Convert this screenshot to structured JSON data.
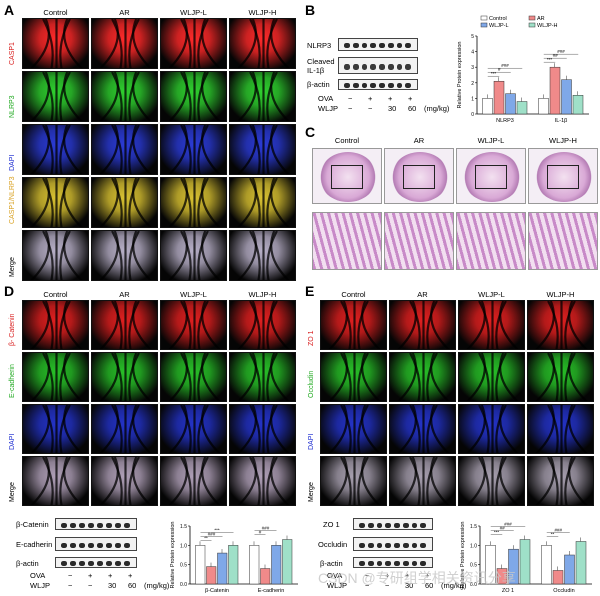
{
  "panels": {
    "A": {
      "label": "A",
      "columns": [
        "Control",
        "AR",
        "WLJP-L",
        "WLJP-H"
      ],
      "rows": [
        {
          "name": "CASP1",
          "color": "#ff2a2a",
          "label_color": "#d81b1b"
        },
        {
          "name": "NLRP3",
          "color": "#2fd02f",
          "label_color": "#1ea81e"
        },
        {
          "name": "DAPI",
          "color": "#2b3bd6",
          "label_color": "#1b2bd0"
        },
        {
          "name": "CASP1/NLRP3",
          "color": "#d9c232",
          "label_color": "#d8a020"
        },
        {
          "name": "Merge",
          "color": "#b8b0c8",
          "label_color": "#000000"
        }
      ]
    },
    "B": {
      "label": "B",
      "blot_labels": [
        "NLRP3",
        "Cleaved IL-1β",
        "β-actin"
      ],
      "treatment_rows": [
        {
          "name": "OVA",
          "values": [
            "−",
            "+",
            "+",
            "+"
          ]
        },
        {
          "name": "WLJP",
          "values": [
            "−",
            "−",
            "30",
            "60"
          ],
          "unit": "(mg/kg)"
        }
      ],
      "chart_data": {
        "type": "bar",
        "ylabel": "Relative Protein expression",
        "ylim": [
          0,
          5
        ],
        "yticks": [
          "0",
          "1",
          "2",
          "3",
          "4",
          "5"
        ],
        "categories": [
          "NLRP3",
          "IL-1β"
        ],
        "legend": [
          "Control",
          "AR",
          "WLJP-L",
          "WLJP-H"
        ],
        "series": [
          {
            "name": "Control",
            "values": [
              1.0,
              1.0
            ],
            "color": "#ffffff"
          },
          {
            "name": "AR",
            "values": [
              2.1,
              3.0
            ],
            "color": "#f08a8a"
          },
          {
            "name": "WLJP-L",
            "values": [
              1.3,
              2.2
            ],
            "color": "#7fa8e8"
          },
          {
            "name": "WLJP-H",
            "values": [
              0.8,
              1.2
            ],
            "color": "#9fe0c8"
          }
        ],
        "annotations": [
          "***",
          "#",
          "###",
          "***",
          "##",
          "###"
        ]
      }
    },
    "C": {
      "label": "C",
      "columns": [
        "Control",
        "AR",
        "WLJP-L",
        "WLJP-H"
      ]
    },
    "D": {
      "label": "D",
      "columns": [
        "Control",
        "AR",
        "WLJP-L",
        "WLJP-H"
      ],
      "rows": [
        {
          "name": "β- Catenin",
          "color": "#e02020",
          "label_color": "#d81b1b"
        },
        {
          "name": "E-cadherin",
          "color": "#28c028",
          "label_color": "#1ea81e"
        },
        {
          "name": "DAPI",
          "color": "#2433c8",
          "label_color": "#1b2bd0"
        },
        {
          "name": "Merge",
          "color": "#b0a0b8",
          "label_color": "#000000"
        }
      ],
      "blot_labels": [
        "β-Catenin",
        "E-cadherin",
        "β-actin"
      ],
      "treatment_rows": [
        {
          "name": "OVA",
          "values": [
            "−",
            "+",
            "+",
            "+"
          ]
        },
        {
          "name": "WLJP",
          "values": [
            "−",
            "−",
            "30",
            "60"
          ],
          "unit": "(mg/kg)"
        }
      ],
      "chart_data": {
        "type": "bar",
        "ylabel": "Relative Protein expression",
        "ylim": [
          0,
          1.5
        ],
        "yticks": [
          "0.0",
          "0.5",
          "1.0",
          "1.5"
        ],
        "categories": [
          "β-Catenin",
          "E-cadherin"
        ],
        "series": [
          {
            "name": "Control",
            "values": [
              1.0,
              1.0
            ],
            "color": "#ffffff"
          },
          {
            "name": "AR",
            "values": [
              0.45,
              0.4
            ],
            "color": "#f08a8a"
          },
          {
            "name": "WLJP-L",
            "values": [
              0.8,
              1.0
            ],
            "color": "#7fa8e8"
          },
          {
            "name": "WLJP-H",
            "values": [
              1.0,
              1.15
            ],
            "color": "#9fe0c8"
          }
        ],
        "annotations": [
          "**",
          "###",
          "***",
          "#",
          "###"
        ]
      }
    },
    "E": {
      "label": "E",
      "columns": [
        "Control",
        "AR",
        "WLJP-L",
        "WLJP-H"
      ],
      "rows": [
        {
          "name": "ZO 1",
          "color": "#e02020",
          "label_color": "#d81b1b"
        },
        {
          "name": "Occludin",
          "color": "#28c028",
          "label_color": "#1ea81e"
        },
        {
          "name": "DAPI",
          "color": "#2433c8",
          "label_color": "#1b2bd0"
        },
        {
          "name": "Merge",
          "color": "#a8a0b0",
          "label_color": "#000000"
        }
      ],
      "blot_labels": [
        "ZO 1",
        "Occludin",
        "β-actin"
      ],
      "treatment_rows": [
        {
          "name": "OVA",
          "values": [
            "−",
            "+",
            "+",
            "+"
          ]
        },
        {
          "name": "WLJP",
          "values": [
            "−",
            "−",
            "30",
            "60"
          ],
          "unit": "(mg/kg)"
        }
      ],
      "chart_data": {
        "type": "bar",
        "ylabel": "Relative Protein expression",
        "ylim": [
          0,
          1.5
        ],
        "yticks": [
          "0.0",
          "0.5",
          "1.0",
          "1.5"
        ],
        "categories": [
          "ZO 1",
          "Occludin"
        ],
        "series": [
          {
            "name": "Control",
            "values": [
              1.0,
              1.0
            ],
            "color": "#ffffff"
          },
          {
            "name": "AR",
            "values": [
              0.4,
              0.35
            ],
            "color": "#f08a8a"
          },
          {
            "name": "WLJP-L",
            "values": [
              0.9,
              0.75
            ],
            "color": "#7fa8e8"
          },
          {
            "name": "WLJP-H",
            "values": [
              1.15,
              1.1
            ],
            "color": "#9fe0c8"
          }
        ],
        "annotations": [
          "***",
          "##",
          "###",
          "**",
          "###"
        ]
      }
    }
  },
  "watermark": "CSDN @专研组学相关资讯分享"
}
